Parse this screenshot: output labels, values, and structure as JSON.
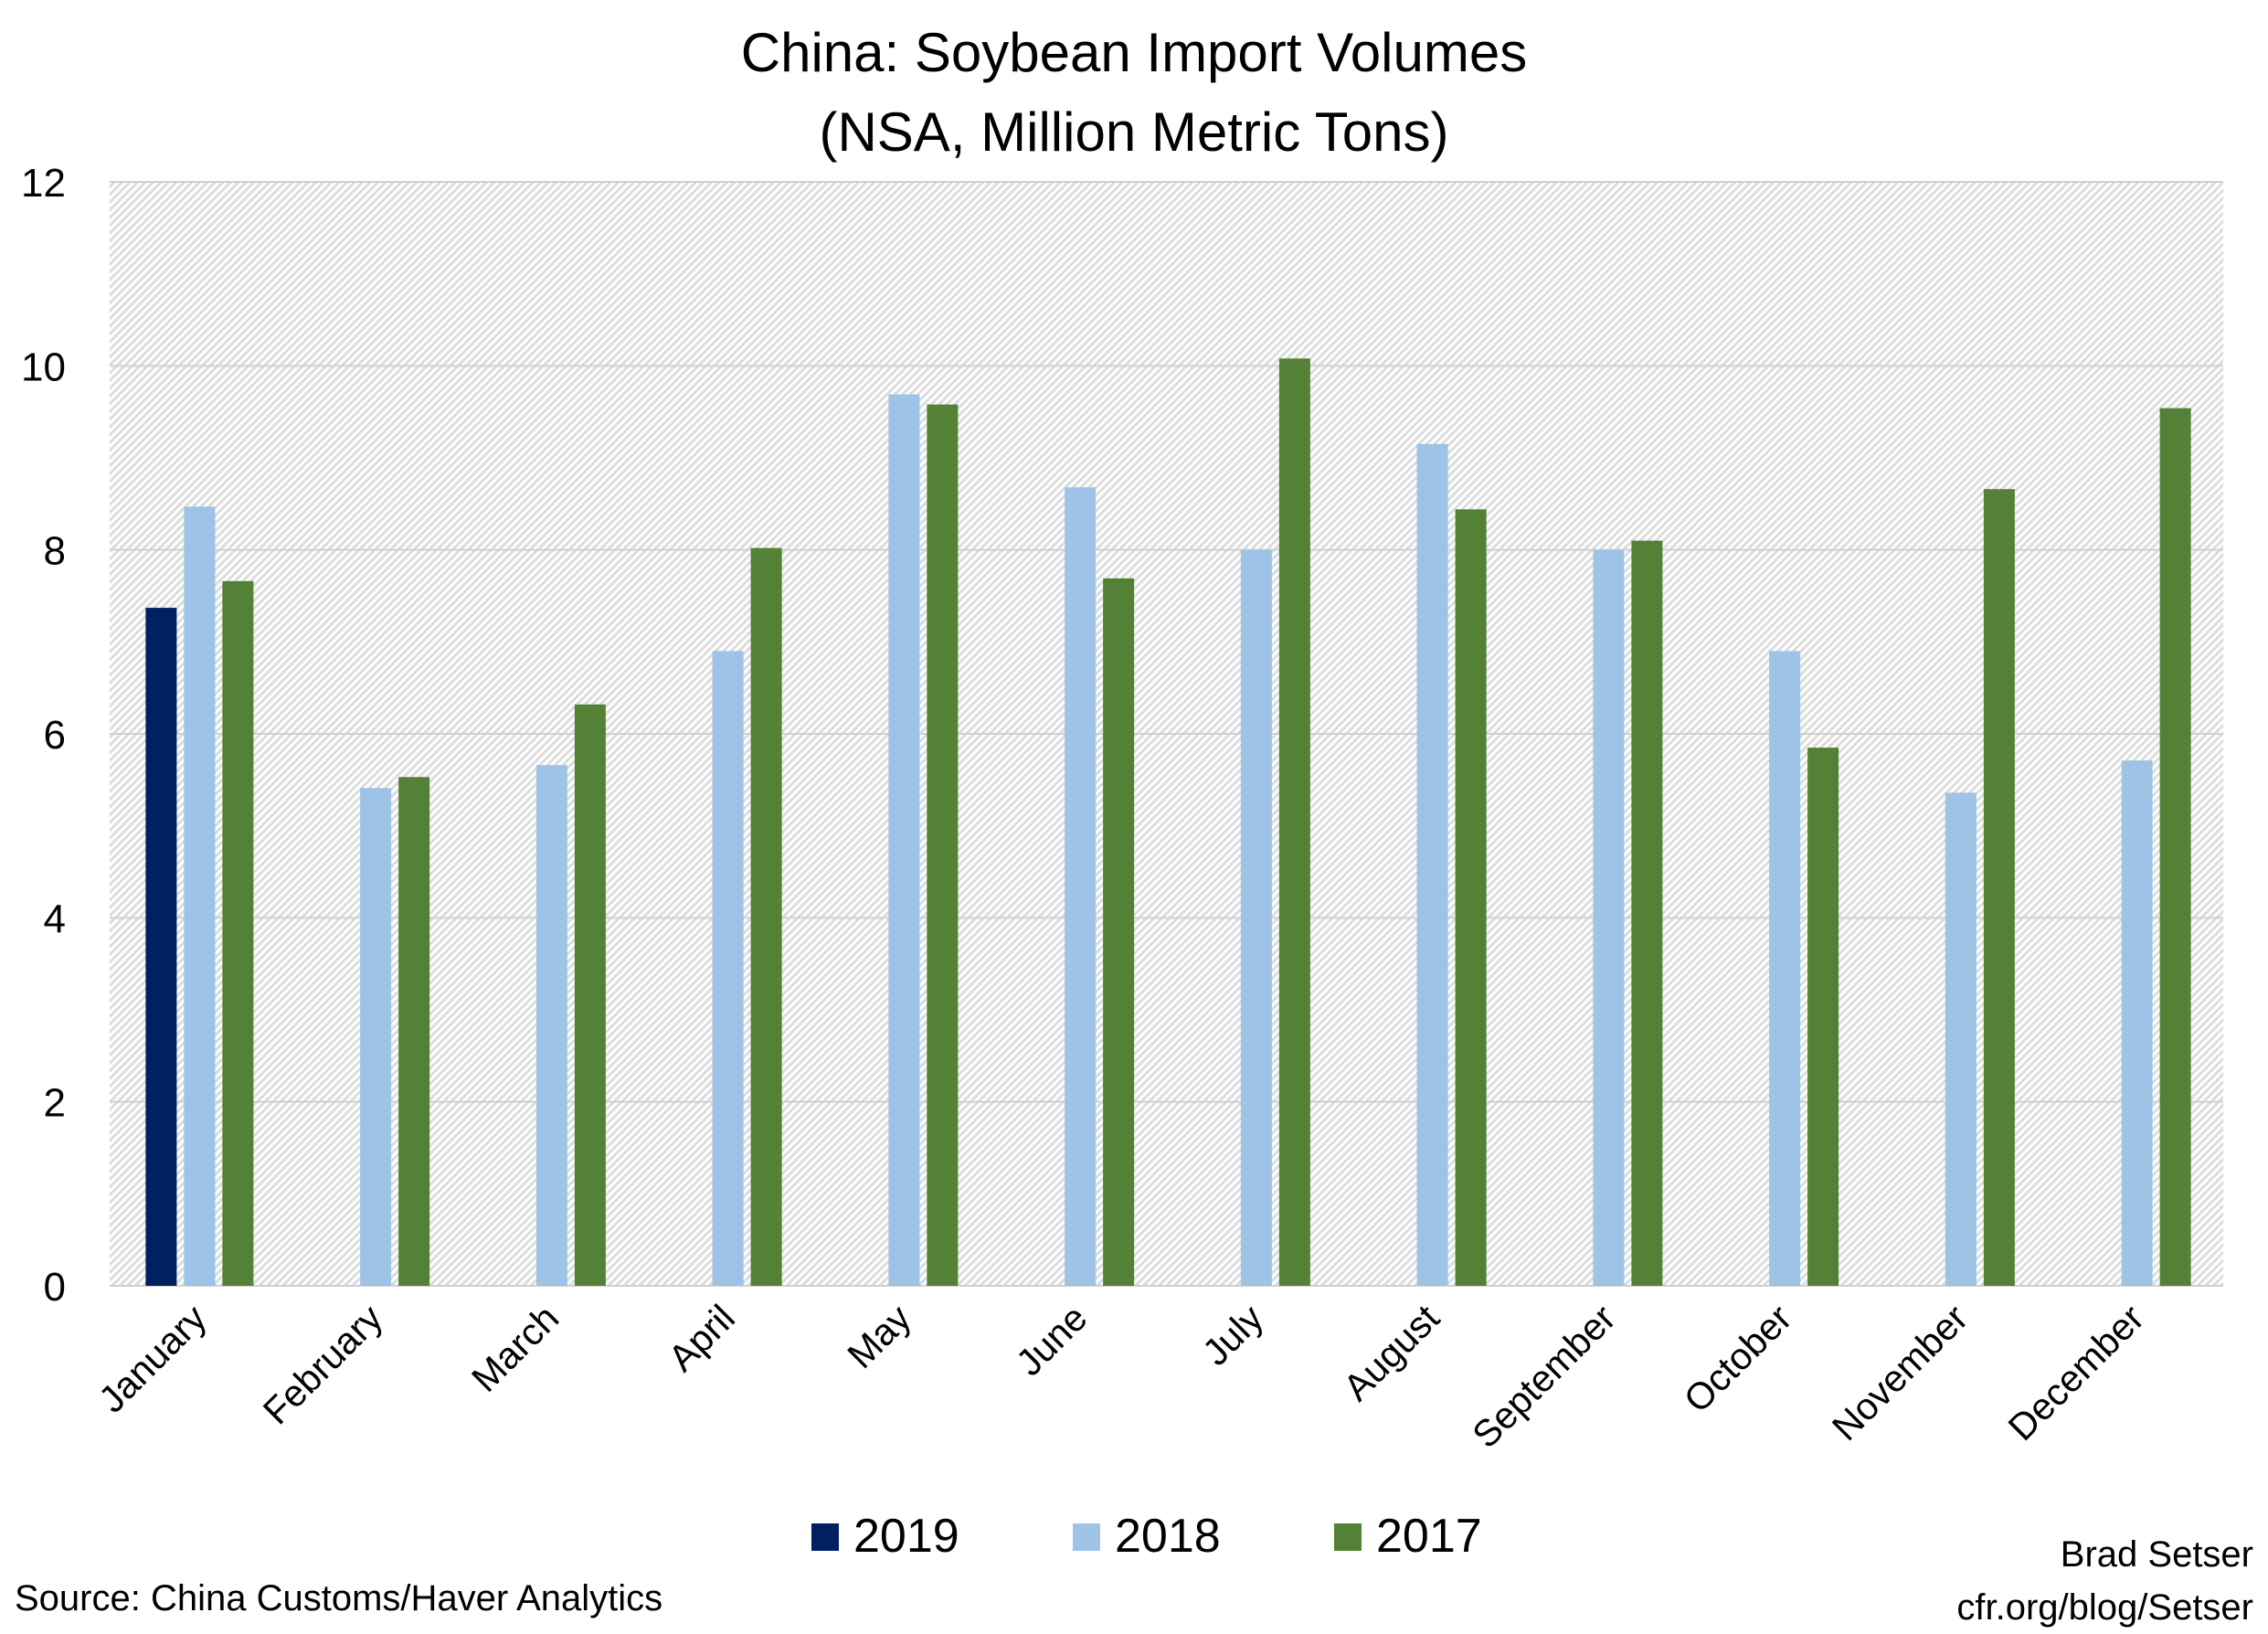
{
  "chart_data": {
    "type": "bar",
    "title": "China: Soybean Import Volumes",
    "subtitle": "(NSA, Million Metric Tons)",
    "xlabel": "",
    "ylabel": "",
    "ylim": [
      0,
      12
    ],
    "yticks": [
      0,
      2,
      4,
      6,
      8,
      10,
      12
    ],
    "grid": true,
    "legend_position": "bottom",
    "categories": [
      "January",
      "February",
      "March",
      "April",
      "May",
      "June",
      "July",
      "August",
      "September",
      "October",
      "November",
      "December"
    ],
    "series": [
      {
        "name": "2019",
        "color": "#002060",
        "values": [
          7.37,
          null,
          null,
          null,
          null,
          null,
          null,
          null,
          null,
          null,
          null,
          null
        ]
      },
      {
        "name": "2018",
        "color": "#9dc3e6",
        "values": [
          8.47,
          5.41,
          5.66,
          6.9,
          9.69,
          8.68,
          8.0,
          9.15,
          8.0,
          6.9,
          5.36,
          5.71
        ]
      },
      {
        "name": "2017",
        "color": "#538135",
        "values": [
          7.66,
          5.53,
          6.32,
          8.02,
          9.58,
          7.69,
          10.08,
          8.44,
          8.1,
          5.85,
          8.66,
          9.54
        ]
      }
    ],
    "source": "Source: China Customs/Haver Analytics",
    "credit_name": "Brad Setser",
    "credit_url": "cfr.org/blog/Setser"
  }
}
